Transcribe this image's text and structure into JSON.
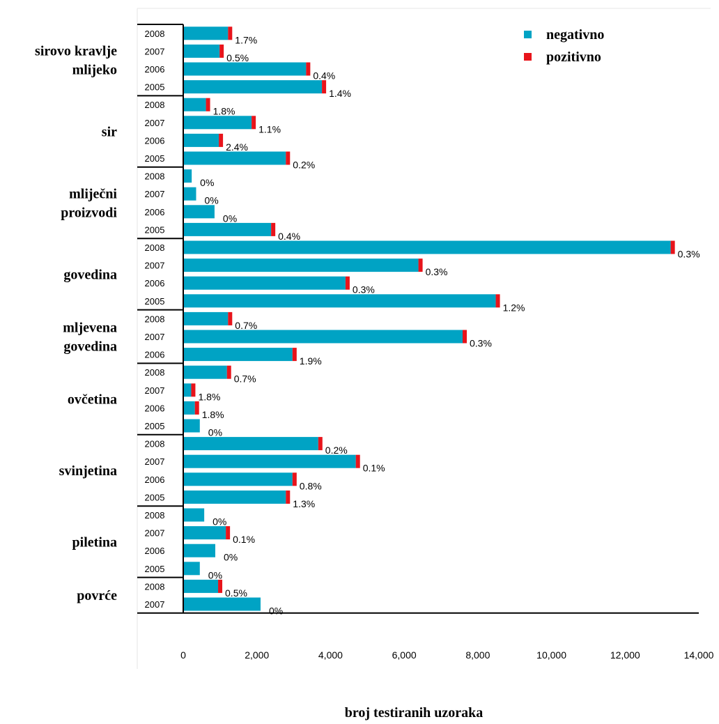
{
  "chart_data": {
    "type": "bar",
    "orientation": "horizontal",
    "stacked": true,
    "xlabel": "broj testiranih uzoraka",
    "xlim": [
      0,
      14000
    ],
    "xticks": [
      "0",
      "2,000",
      "4,000",
      "6,000",
      "8,000",
      "10,000",
      "12,000",
      "14,000"
    ],
    "legend": {
      "position": "top-right",
      "entries": [
        {
          "name": "negativno",
          "color": "#00A3C4"
        },
        {
          "name": "pozitivno",
          "color": "#E8141B"
        }
      ]
    },
    "colors": {
      "negativno": "#00A3C4",
      "pozitivno": "#E8141B"
    },
    "groups": [
      {
        "label": [
          "sirovo kravlje",
          "mlijeko"
        ],
        "rows": [
          {
            "year": "2008",
            "total": 1330,
            "pct": "1.7%"
          },
          {
            "year": "2007",
            "total": 1100,
            "pct": "0.5%"
          },
          {
            "year": "2006",
            "total": 3450,
            "pct": "0.4%"
          },
          {
            "year": "2005",
            "total": 3880,
            "pct": "1.4%"
          }
        ]
      },
      {
        "label": [
          "sir"
        ],
        "rows": [
          {
            "year": "2008",
            "total": 730,
            "pct": "1.8%"
          },
          {
            "year": "2007",
            "total": 1970,
            "pct": "1.1%"
          },
          {
            "year": "2006",
            "total": 1080,
            "pct": "2.4%"
          },
          {
            "year": "2005",
            "total": 2900,
            "pct": "0.2%"
          }
        ]
      },
      {
        "label": [
          "mliječni",
          "proizvodi"
        ],
        "rows": [
          {
            "year": "2008",
            "total": 230,
            "pct": "0%"
          },
          {
            "year": "2007",
            "total": 350,
            "pct": "0%"
          },
          {
            "year": "2006",
            "total": 850,
            "pct": "0%"
          },
          {
            "year": "2005",
            "total": 2500,
            "pct": "0.4%"
          }
        ]
      },
      {
        "label": [
          "govedina"
        ],
        "rows": [
          {
            "year": "2008",
            "total": 13350,
            "pct": "0.3%"
          },
          {
            "year": "2007",
            "total": 6500,
            "pct": "0.3%"
          },
          {
            "year": "2006",
            "total": 4520,
            "pct": "0.3%"
          },
          {
            "year": "2005",
            "total": 8600,
            "pct": "1.2%"
          }
        ]
      },
      {
        "label": [
          "mljevena",
          "govedina"
        ],
        "rows": [
          {
            "year": "2008",
            "total": 1330,
            "pct": "0.7%"
          },
          {
            "year": "2007",
            "total": 7700,
            "pct": "0.3%"
          },
          {
            "year": "2006",
            "total": 3080,
            "pct": "1.9%"
          }
        ]
      },
      {
        "label": [
          "ovčetina"
        ],
        "rows": [
          {
            "year": "2008",
            "total": 1300,
            "pct": "0.7%"
          },
          {
            "year": "2007",
            "total": 330,
            "pct": "1.8%"
          },
          {
            "year": "2006",
            "total": 430,
            "pct": "1.8%"
          },
          {
            "year": "2005",
            "total": 450,
            "pct": "0%"
          }
        ]
      },
      {
        "label": [
          "svinjetina"
        ],
        "rows": [
          {
            "year": "2008",
            "total": 3780,
            "pct": "0.2%"
          },
          {
            "year": "2007",
            "total": 4800,
            "pct": "0.1%"
          },
          {
            "year": "2006",
            "total": 3080,
            "pct": "0.8%"
          },
          {
            "year": "2005",
            "total": 2900,
            "pct": "1.3%"
          }
        ]
      },
      {
        "label": [
          "piletina"
        ],
        "rows": [
          {
            "year": "2008",
            "total": 570,
            "pct": "0%"
          },
          {
            "year": "2007",
            "total": 1270,
            "pct": "0.1%"
          },
          {
            "year": "2006",
            "total": 870,
            "pct": "0%"
          },
          {
            "year": "2005",
            "total": 450,
            "pct": "0%"
          }
        ]
      },
      {
        "label": [
          "povrće"
        ],
        "rows": [
          {
            "year": "2008",
            "total": 1060,
            "pct": "0.5%"
          },
          {
            "year": "2007",
            "total": 2100,
            "pct": "0%"
          }
        ]
      }
    ]
  }
}
